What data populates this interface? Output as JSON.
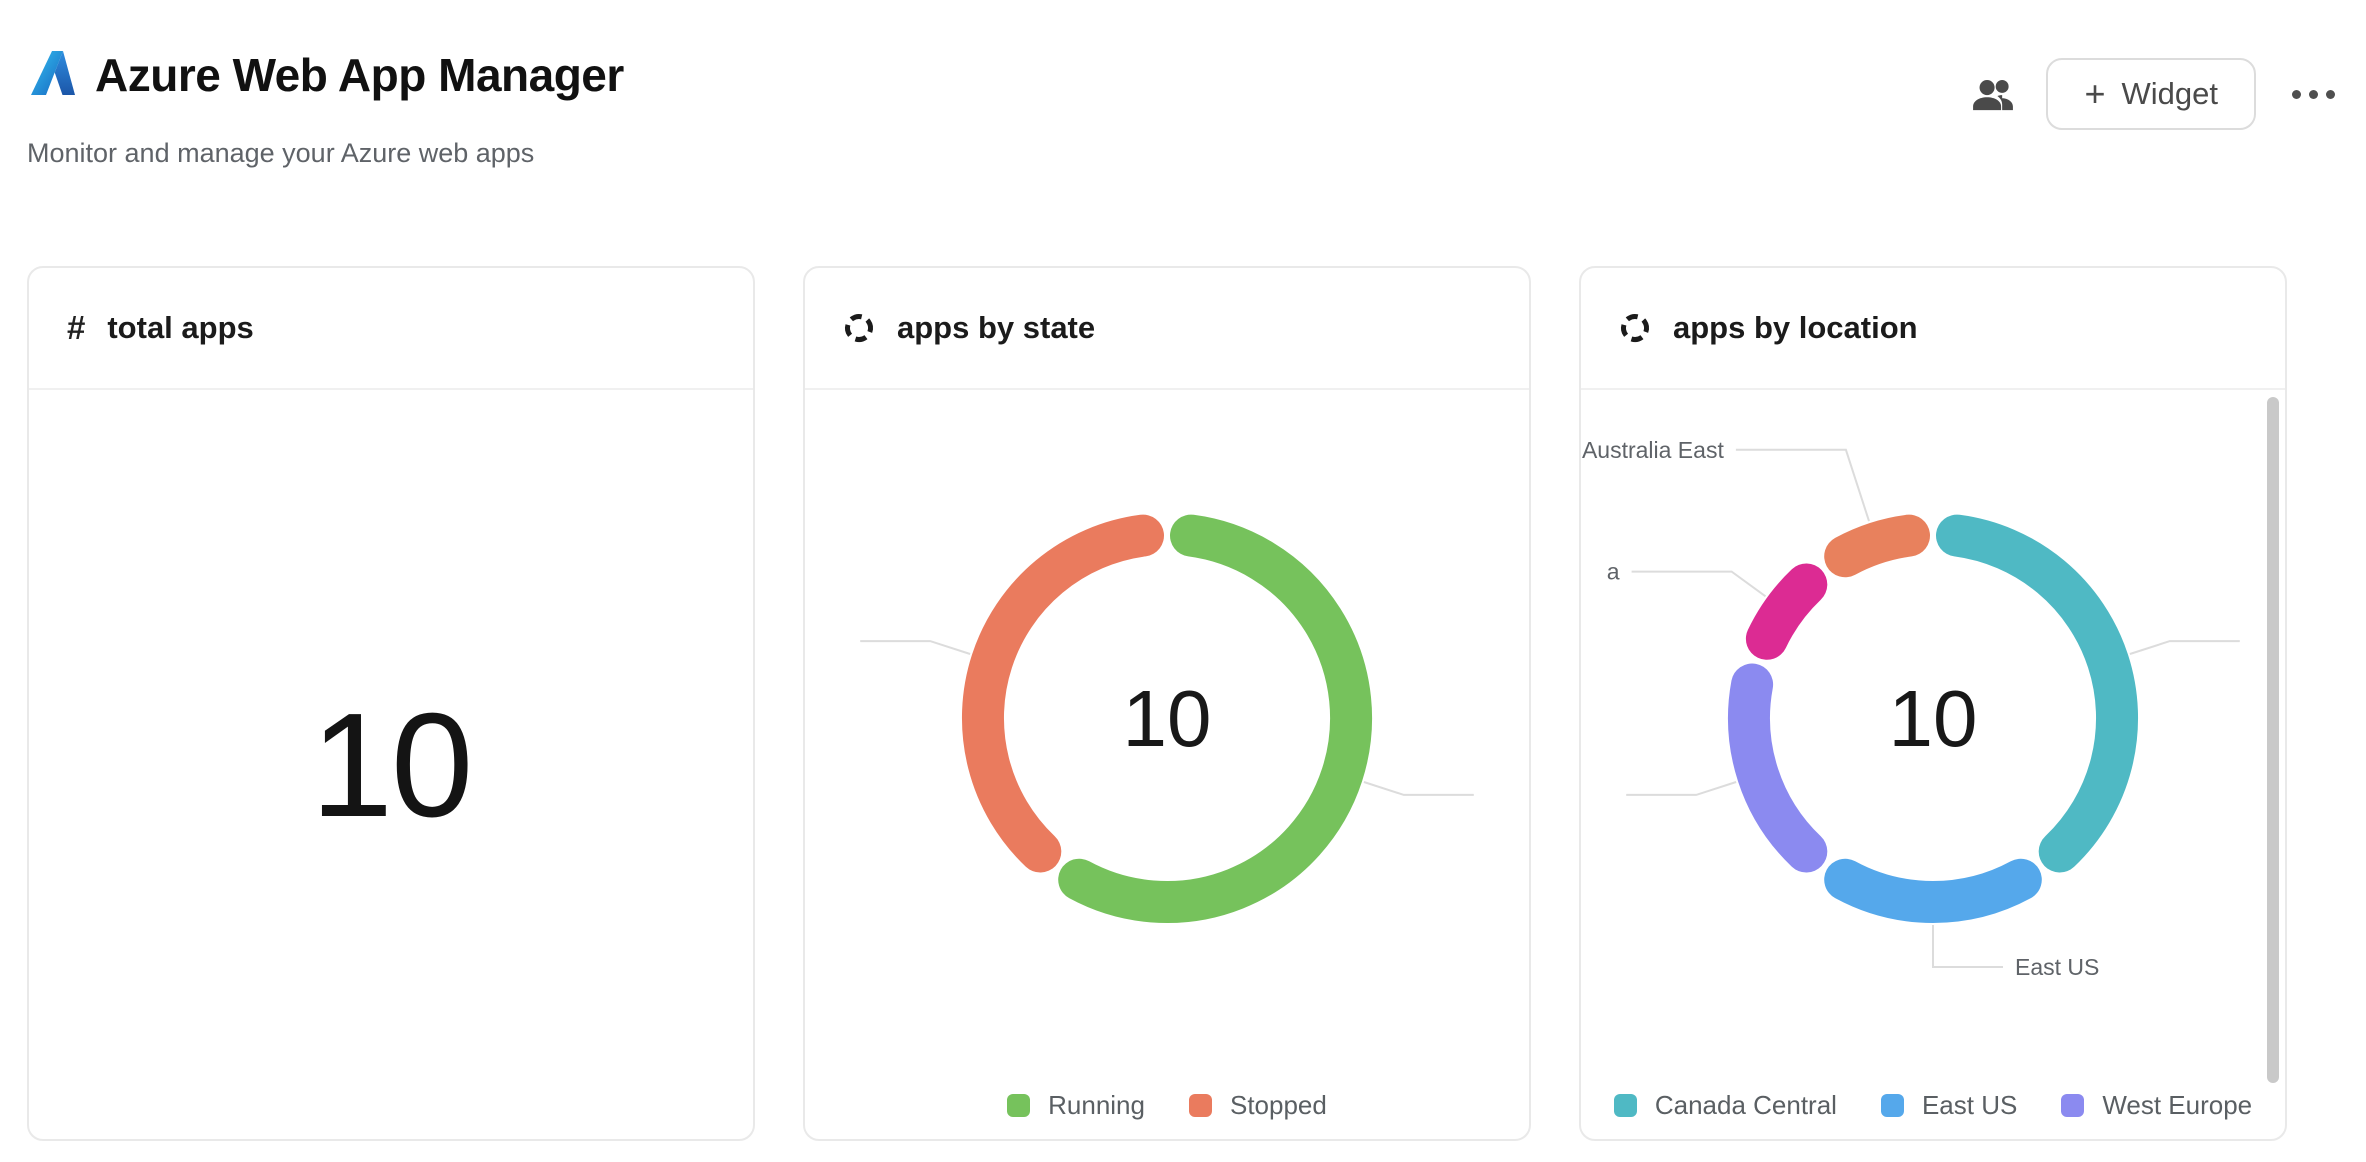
{
  "header": {
    "app_title": "Azure Web App Manager",
    "subtitle": "Monitor and manage your Azure web apps",
    "widget_button": {
      "plus": "+",
      "label": "Widget"
    }
  },
  "cards": {
    "total_apps": {
      "icon": "#",
      "title": "total apps",
      "value": "10"
    },
    "apps_by_state": {
      "title": "apps by state"
    },
    "apps_by_location": {
      "title": "apps by location"
    }
  },
  "chart_data": [
    {
      "type": "donut",
      "title": "apps by state",
      "total": 10,
      "center_label": "10",
      "slices": [
        {
          "label": "Running",
          "value": 6,
          "color": "#76c25c",
          "callout": {
            "label": ""
          }
        },
        {
          "label": "Stopped",
          "value": 4,
          "color": "#ea7b5e",
          "callout": {
            "label": ""
          }
        }
      ],
      "legend": [
        {
          "label": "Running",
          "color": "#76c25c"
        },
        {
          "label": "Stopped",
          "color": "#ea7b5e"
        }
      ],
      "legend_position": "bottom"
    },
    {
      "type": "donut",
      "title": "apps by location",
      "total": 10,
      "center_label": "10",
      "slices": [
        {
          "label": "Canada Central",
          "value": 4,
          "color": "#4fb9c4",
          "callout": {
            "label": ""
          }
        },
        {
          "label": "East US",
          "value": 2,
          "color": "#55a8eb",
          "callout": {
            "label": "East US"
          }
        },
        {
          "label": "West Europe",
          "value": 2,
          "color": "#8b8af0",
          "callout": {
            "label": ""
          }
        },
        {
          "label": "",
          "value": 1,
          "color": "#dc2b93",
          "callout": {
            "label": "a",
            "run": 100
          }
        },
        {
          "label": "Australia East",
          "value": 1,
          "color": "#e8815d",
          "callout": {
            "label": "Australia East",
            "ext": 75,
            "run": 110
          }
        }
      ],
      "legend": [
        {
          "label": "Canada Central",
          "color": "#4fb9c4"
        },
        {
          "label": "East US",
          "color": "#55a8eb"
        },
        {
          "label": "West Europe",
          "color": "#8b8af0"
        }
      ],
      "legend_position": "bottom"
    }
  ]
}
